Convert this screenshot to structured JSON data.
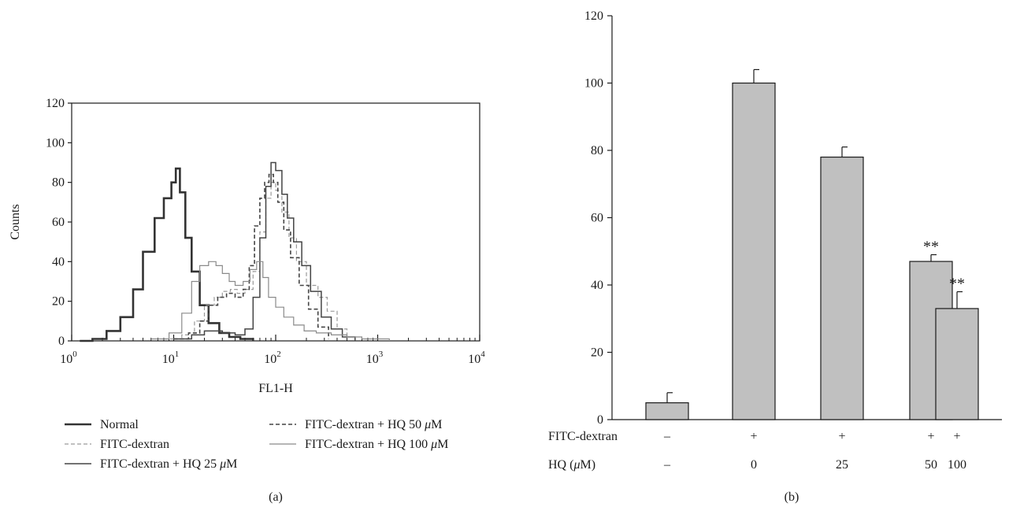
{
  "chart_data": [
    {
      "panel": "(a)",
      "type": "line",
      "xlabel": "FL1-H",
      "ylabel": "Counts",
      "x_scale": "log",
      "xlim": [
        1,
        10000
      ],
      "ylim": [
        0,
        120
      ],
      "x_ticks": [
        {
          "base": "10",
          "exp": "0"
        },
        {
          "base": "10",
          "exp": "1"
        },
        {
          "base": "10",
          "exp": "2"
        },
        {
          "base": "10",
          "exp": "3"
        },
        {
          "base": "10",
          "exp": "4"
        }
      ],
      "y_ticks": [
        "0",
        "20",
        "40",
        "60",
        "80",
        "100",
        "120"
      ],
      "legend": [
        {
          "label_pre": "Normal",
          "unit": "",
          "label_post": "",
          "style": "thick",
          "color": "#333333"
        },
        {
          "label_pre": "FITC-dextran",
          "unit": "",
          "label_post": "",
          "style": "dashed-light",
          "color": "#9a9a9a"
        },
        {
          "label_pre": "FITC-dextran + HQ 25",
          "unit": "μ",
          "label_post": "M",
          "style": "solid",
          "color": "#444444"
        },
        {
          "label_pre": "FITC-dextran + HQ 50",
          "unit": "μ",
          "label_post": "M",
          "style": "dashed",
          "color": "#444444"
        },
        {
          "label_pre": "FITC-dextran + HQ 100",
          "unit": "μ",
          "label_post": "M",
          "style": "solid-light",
          "color": "#8a8a8a"
        }
      ],
      "series": [
        {
          "style": "thick",
          "color": "#333333",
          "x": [
            1.2,
            1.6,
            2.2,
            3,
            4,
            5,
            6.5,
            8,
            9.5,
            10.5,
            11.5,
            13,
            15,
            18,
            22,
            28,
            35,
            45,
            60
          ],
          "y": [
            0,
            1,
            5,
            12,
            26,
            45,
            62,
            72,
            80,
            87,
            75,
            52,
            35,
            18,
            9,
            4,
            2,
            1,
            0
          ]
        },
        {
          "style": "dashed-light",
          "color": "#9a9a9a",
          "x": [
            8,
            12,
            16,
            20,
            25,
            30,
            36,
            42,
            50,
            60,
            70,
            80,
            90,
            100,
            115,
            135,
            160,
            200,
            260,
            320,
            400,
            500
          ],
          "y": [
            1,
            3,
            10,
            18,
            22,
            25,
            26,
            24,
            26,
            35,
            55,
            72,
            80,
            76,
            65,
            52,
            40,
            28,
            22,
            15,
            6,
            1
          ]
        },
        {
          "style": "solid",
          "color": "#444444",
          "x": [
            10,
            15,
            20,
            25,
            30,
            40,
            50,
            60,
            70,
            80,
            90,
            100,
            115,
            130,
            150,
            180,
            220,
            280,
            350,
            450,
            600
          ],
          "y": [
            1,
            3,
            5,
            5,
            4,
            3,
            6,
            22,
            52,
            78,
            90,
            86,
            74,
            62,
            50,
            38,
            25,
            12,
            6,
            2,
            0
          ]
        },
        {
          "style": "dashed",
          "color": "#444444",
          "x": [
            10,
            14,
            18,
            22,
            27,
            33,
            40,
            48,
            55,
            62,
            70,
            78,
            86,
            95,
            105,
            120,
            140,
            170,
            210,
            260,
            330
          ],
          "y": [
            1,
            4,
            10,
            18,
            22,
            24,
            22,
            26,
            38,
            58,
            72,
            80,
            84,
            80,
            70,
            56,
            42,
            28,
            16,
            7,
            1
          ]
        },
        {
          "style": "solid-light",
          "color": "#8a8a8a",
          "x": [
            6,
            9,
            12,
            15,
            18,
            22,
            26,
            30,
            35,
            40,
            48,
            56,
            65,
            75,
            85,
            100,
            120,
            150,
            190,
            250,
            350,
            500,
            700,
            1000,
            1300
          ],
          "y": [
            1,
            4,
            14,
            30,
            38,
            40,
            38,
            34,
            30,
            28,
            30,
            36,
            40,
            32,
            22,
            17,
            12,
            8,
            5,
            4,
            3,
            2,
            1,
            1,
            0
          ]
        }
      ]
    },
    {
      "panel": "(b)",
      "type": "bar",
      "ylim": [
        0,
        120
      ],
      "y_ticks": [
        "0",
        "20",
        "40",
        "60",
        "80",
        "100",
        "120"
      ],
      "values": [
        5,
        100,
        78,
        47,
        33
      ],
      "errors": [
        3,
        4,
        3,
        2,
        5
      ],
      "significance": [
        "",
        "",
        "",
        "**",
        "**"
      ],
      "bar_color": "#c0c0c0",
      "row_labels": [
        {
          "pre": "FITC-dextran",
          "unit": "",
          "post": "",
          "values": [
            "–",
            "+",
            "+",
            "+",
            "+"
          ]
        },
        {
          "pre": "HQ (",
          "unit": "μ",
          "post": "M)",
          "values": [
            "–",
            "0",
            "25",
            "50",
            "100"
          ]
        }
      ]
    }
  ]
}
